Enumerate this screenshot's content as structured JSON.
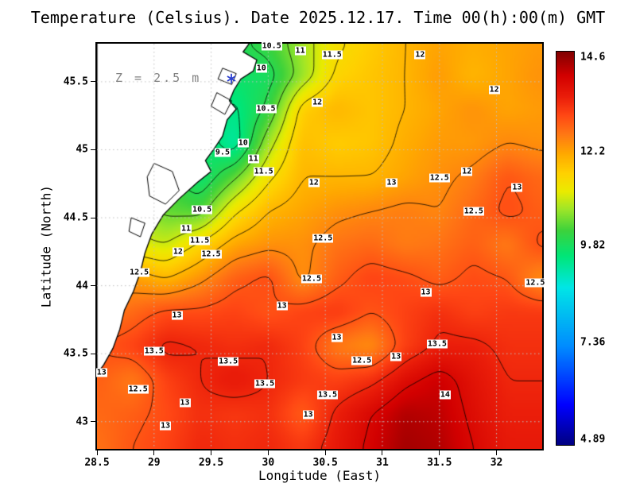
{
  "title": "Temperature (Celsius). Date 2025.12.17. Time 00(h):00(m) GMT",
  "axes": {
    "x_label": "Longitude (East)",
    "y_label": "Latitude (North)",
    "x_ticks": [
      {
        "label": "28.5",
        "value": 28.5
      },
      {
        "label": "29",
        "value": 29
      },
      {
        "label": "29.5",
        "value": 29.5
      },
      {
        "label": "30",
        "value": 30
      },
      {
        "label": "30.5",
        "value": 30.5
      },
      {
        "label": "31",
        "value": 31
      },
      {
        "label": "31.5",
        "value": 31.5
      },
      {
        "label": "32",
        "value": 32
      }
    ],
    "y_ticks": [
      {
        "label": "45.5",
        "value": 45.5
      },
      {
        "label": "45",
        "value": 45
      },
      {
        "label": "44.5",
        "value": 44.5
      },
      {
        "label": "44",
        "value": 44
      },
      {
        "label": "43.5",
        "value": 43.5
      },
      {
        "label": "43",
        "value": 43
      }
    ]
  },
  "annotation": {
    "text": "Z = 2.5 m",
    "lon": 28.66,
    "lat": 45.52,
    "marker_lon": 29.68,
    "marker_lat": 45.52,
    "marker_color": "#2b3fd0"
  },
  "colorbar": {
    "vmin": 4.75,
    "vmax": 14.75,
    "labels": [
      {
        "label": "14.6",
        "value": 14.6
      },
      {
        "label": "12.2",
        "value": 12.2
      },
      {
        "label": "9.82",
        "value": 9.82
      },
      {
        "label": "7.36",
        "value": 7.36
      },
      {
        "label": "4.89",
        "value": 4.89
      }
    ]
  },
  "chart_data": {
    "type": "heatmap",
    "title": "Temperature (Celsius). Date 2025.12.17. Time 00(h):00(m) GMT",
    "xlabel": "Longitude (East)",
    "ylabel": "Latitude (North)",
    "units": "Celsius",
    "depth_m": 2.5,
    "datetime": "2025.12.17 00:00 GMT",
    "xlim": [
      28.5,
      32.4
    ],
    "ylim": [
      42.8,
      45.78
    ],
    "grid_lon": [
      28.5,
      28.8,
      29.1,
      29.4,
      29.7,
      30.0,
      30.3,
      30.6,
      30.9,
      31.2,
      31.5,
      31.8,
      32.1,
      32.4
    ],
    "grid_lat": [
      45.8,
      45.55,
      45.3,
      45.05,
      44.8,
      44.55,
      44.3,
      44.05,
      43.8,
      43.55,
      43.3,
      43.05,
      42.8
    ],
    "grid_values": [
      [
        10.5,
        10.4,
        10.3,
        10.1,
        9.9,
        10.2,
        10.8,
        11.4,
        11.7,
        12.0,
        12.2,
        12.1,
        12.2,
        12.3
      ],
      [
        10.4,
        10.3,
        10.2,
        10.0,
        9.7,
        9.8,
        10.7,
        11.6,
        11.8,
        12.0,
        12.3,
        12.0,
        12.2,
        12.4
      ],
      [
        10.4,
        10.3,
        10.2,
        9.9,
        9.4,
        10.1,
        11.7,
        12.0,
        11.8,
        12.0,
        12.2,
        12.4,
        12.2,
        12.3
      ],
      [
        10.5,
        10.4,
        10.2,
        9.8,
        9.2,
        10.8,
        11.9,
        11.7,
        11.8,
        12.1,
        12.3,
        12.3,
        12.5,
        12.4
      ],
      [
        10.8,
        10.6,
        10.2,
        9.6,
        10.4,
        11.4,
        12.0,
        12.0,
        12.0,
        12.2,
        12.4,
        12.6,
        13.0,
        12.8
      ],
      [
        11.0,
        10.8,
        10.4,
        10.3,
        11.4,
        12.0,
        12.2,
        12.4,
        12.5,
        12.6,
        12.5,
        12.8,
        13.1,
        12.9
      ],
      [
        11.4,
        11.2,
        11.0,
        11.6,
        12.2,
        12.4,
        12.4,
        12.7,
        12.8,
        12.6,
        12.7,
        12.9,
        12.6,
        13.1
      ],
      [
        12.2,
        12.3,
        12.0,
        12.4,
        12.9,
        13.1,
        12.4,
        12.9,
        13.2,
        13.1,
        12.9,
        13.1,
        13.0,
        12.4
      ],
      [
        12.6,
        12.8,
        13.1,
        13.1,
        13.2,
        13.0,
        13.2,
        13.3,
        13.0,
        13.2,
        13.4,
        13.2,
        13.3,
        13.3
      ],
      [
        13.0,
        13.2,
        13.6,
        13.5,
        13.4,
        13.5,
        13.2,
        12.6,
        12.4,
        13.2,
        13.6,
        13.6,
        13.4,
        13.4
      ],
      [
        12.9,
        12.6,
        13.2,
        13.5,
        13.7,
        13.5,
        13.3,
        13.2,
        13.4,
        13.9,
        14.2,
        13.8,
        13.5,
        13.5
      ],
      [
        12.8,
        12.9,
        13.1,
        13.4,
        13.3,
        13.4,
        12.9,
        13.6,
        14.0,
        14.4,
        14.3,
        13.9,
        13.6,
        13.6
      ],
      [
        12.7,
        13.0,
        13.2,
        13.5,
        13.4,
        13.5,
        13.3,
        13.7,
        14.1,
        14.5,
        14.4,
        14.0,
        13.7,
        13.7
      ]
    ],
    "contour_levels": [
      9.5,
      10,
      10.5,
      11,
      11.5,
      12,
      12.5,
      13,
      13.5,
      14
    ],
    "contour_labels": [
      {
        "v": "10.5",
        "lon": 30.03,
        "lat": 45.76
      },
      {
        "v": "11",
        "lon": 30.28,
        "lat": 45.73
      },
      {
        "v": "11.5",
        "lon": 30.56,
        "lat": 45.7
      },
      {
        "v": "12",
        "lon": 31.33,
        "lat": 45.7
      },
      {
        "v": "12",
        "lon": 31.98,
        "lat": 45.44
      },
      {
        "v": "10",
        "lon": 29.94,
        "lat": 45.6
      },
      {
        "v": "10.5",
        "lon": 29.98,
        "lat": 45.3
      },
      {
        "v": "12",
        "lon": 30.43,
        "lat": 45.35
      },
      {
        "v": "9.5",
        "lon": 29.6,
        "lat": 44.98
      },
      {
        "v": "10",
        "lon": 29.78,
        "lat": 45.05
      },
      {
        "v": "11",
        "lon": 29.87,
        "lat": 44.93
      },
      {
        "v": "11.5",
        "lon": 29.96,
        "lat": 44.84
      },
      {
        "v": "12",
        "lon": 30.4,
        "lat": 44.76
      },
      {
        "v": "13",
        "lon": 31.08,
        "lat": 44.76
      },
      {
        "v": "12.5",
        "lon": 31.5,
        "lat": 44.79
      },
      {
        "v": "12",
        "lon": 31.74,
        "lat": 44.84
      },
      {
        "v": "13",
        "lon": 32.18,
        "lat": 44.72
      },
      {
        "v": "12.5",
        "lon": 31.8,
        "lat": 44.55
      },
      {
        "v": "10.5",
        "lon": 29.42,
        "lat": 44.56
      },
      {
        "v": "11",
        "lon": 29.28,
        "lat": 44.42
      },
      {
        "v": "11.5",
        "lon": 29.4,
        "lat": 44.33
      },
      {
        "v": "12",
        "lon": 29.21,
        "lat": 44.25
      },
      {
        "v": "12.5",
        "lon": 29.5,
        "lat": 44.23
      },
      {
        "v": "12.5",
        "lon": 28.87,
        "lat": 44.1
      },
      {
        "v": "12.5",
        "lon": 30.48,
        "lat": 44.35
      },
      {
        "v": "12.5",
        "lon": 30.38,
        "lat": 44.05
      },
      {
        "v": "12.5",
        "lon": 32.34,
        "lat": 44.02
      },
      {
        "v": "13",
        "lon": 30.12,
        "lat": 43.85
      },
      {
        "v": "13",
        "lon": 29.2,
        "lat": 43.78
      },
      {
        "v": "13",
        "lon": 31.38,
        "lat": 43.95
      },
      {
        "v": "13",
        "lon": 30.6,
        "lat": 43.62
      },
      {
        "v": "13.5",
        "lon": 31.48,
        "lat": 43.57
      },
      {
        "v": "13",
        "lon": 31.12,
        "lat": 43.48
      },
      {
        "v": "12.5",
        "lon": 30.82,
        "lat": 43.45
      },
      {
        "v": "13.5",
        "lon": 29.0,
        "lat": 43.52
      },
      {
        "v": "13.5",
        "lon": 29.65,
        "lat": 43.44
      },
      {
        "v": "13",
        "lon": 28.54,
        "lat": 43.36
      },
      {
        "v": "12.5",
        "lon": 28.86,
        "lat": 43.24
      },
      {
        "v": "13.5",
        "lon": 29.97,
        "lat": 43.28
      },
      {
        "v": "13",
        "lon": 29.27,
        "lat": 43.14
      },
      {
        "v": "14",
        "lon": 31.55,
        "lat": 43.2
      },
      {
        "v": "13.5",
        "lon": 30.52,
        "lat": 43.2
      },
      {
        "v": "13",
        "lon": 29.1,
        "lat": 42.97
      },
      {
        "v": "13",
        "lon": 30.35,
        "lat": 43.05
      }
    ],
    "coastline": [
      [
        29.85,
        45.8
      ],
      [
        29.78,
        45.72
      ],
      [
        29.9,
        45.66
      ],
      [
        29.87,
        45.58
      ],
      [
        29.76,
        45.52
      ],
      [
        29.7,
        45.44
      ],
      [
        29.66,
        45.36
      ],
      [
        29.72,
        45.3
      ],
      [
        29.64,
        45.22
      ],
      [
        29.6,
        45.1
      ],
      [
        29.52,
        45.0
      ],
      [
        29.45,
        44.92
      ],
      [
        29.5,
        44.84
      ],
      [
        29.38,
        44.76
      ],
      [
        29.22,
        44.64
      ],
      [
        29.08,
        44.52
      ],
      [
        28.98,
        44.38
      ],
      [
        28.92,
        44.24
      ],
      [
        28.88,
        44.1
      ],
      [
        28.82,
        43.96
      ],
      [
        28.74,
        43.82
      ],
      [
        28.7,
        43.68
      ],
      [
        28.64,
        43.54
      ],
      [
        28.56,
        43.42
      ],
      [
        28.5,
        43.35
      ],
      [
        28.5,
        45.8
      ]
    ],
    "lakes": [
      [
        [
          29.6,
          45.6
        ],
        [
          29.72,
          45.56
        ],
        [
          29.68,
          45.48
        ],
        [
          29.56,
          45.52
        ]
      ],
      [
        [
          29.55,
          45.42
        ],
        [
          29.68,
          45.36
        ],
        [
          29.62,
          45.26
        ],
        [
          29.5,
          45.32
        ]
      ],
      [
        [
          29.0,
          44.9
        ],
        [
          29.16,
          44.84
        ],
        [
          29.22,
          44.7
        ],
        [
          29.1,
          44.6
        ],
        [
          28.96,
          44.66
        ],
        [
          28.94,
          44.8
        ]
      ],
      [
        [
          28.8,
          44.5
        ],
        [
          28.92,
          44.46
        ],
        [
          28.88,
          44.36
        ],
        [
          28.78,
          44.4
        ]
      ]
    ],
    "grid_line_color": "#c0c0c0",
    "contour_line_color": "#000000",
    "land_color": "#ffffff",
    "colormap": [
      {
        "t": 0.0,
        "c": [
          0,
          0,
          130
        ]
      },
      {
        "t": 0.1,
        "c": [
          0,
          0,
          255
        ]
      },
      {
        "t": 0.25,
        "c": [
          0,
          140,
          255
        ]
      },
      {
        "t": 0.4,
        "c": [
          0,
          230,
          230
        ]
      },
      {
        "t": 0.48,
        "c": [
          0,
          230,
          120
        ]
      },
      {
        "t": 0.545,
        "c": [
          60,
          210,
          60
        ]
      },
      {
        "t": 0.6,
        "c": [
          160,
          230,
          40
        ]
      },
      {
        "t": 0.645,
        "c": [
          235,
          235,
          0
        ]
      },
      {
        "t": 0.69,
        "c": [
          255,
          210,
          0
        ]
      },
      {
        "t": 0.74,
        "c": [
          255,
          170,
          0
        ]
      },
      {
        "t": 0.79,
        "c": [
          255,
          120,
          20
        ]
      },
      {
        "t": 0.84,
        "c": [
          255,
          70,
          20
        ]
      },
      {
        "t": 0.885,
        "c": [
          235,
          30,
          10
        ]
      },
      {
        "t": 0.94,
        "c": [
          210,
          0,
          0
        ]
      },
      {
        "t": 1.0,
        "c": [
          130,
          0,
          0
        ]
      }
    ]
  }
}
